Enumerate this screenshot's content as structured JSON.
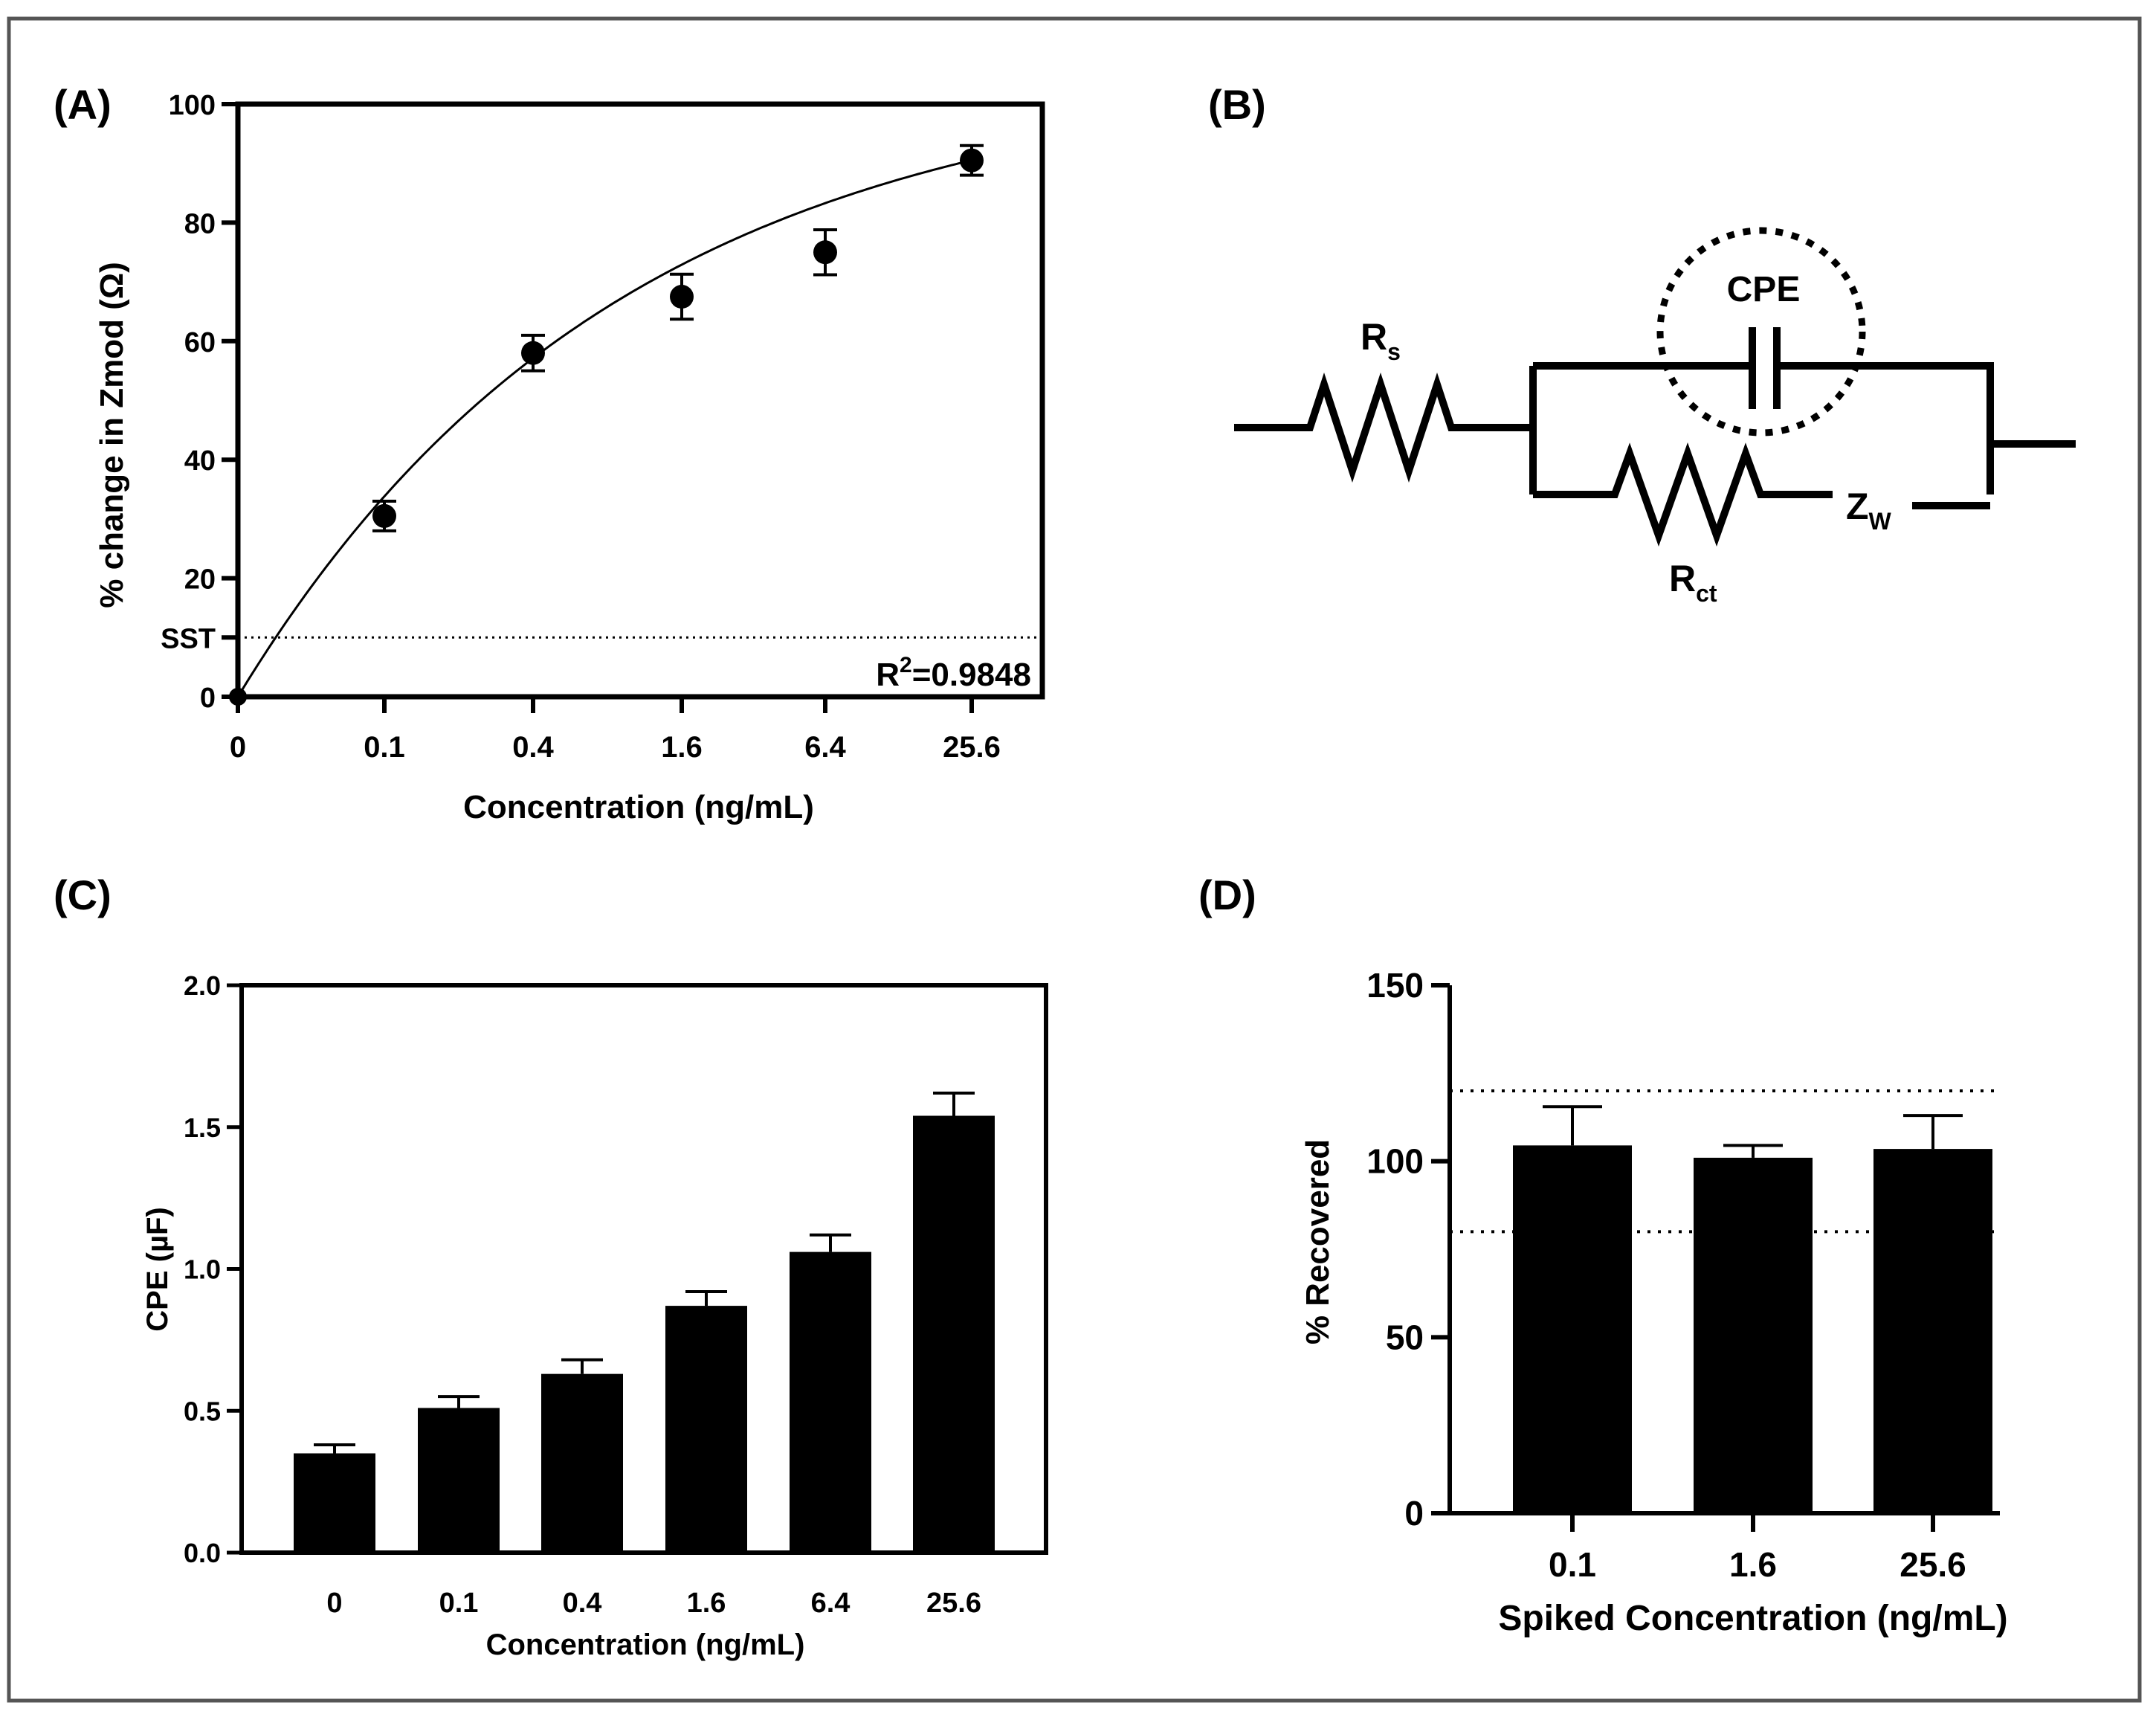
{
  "chart_data": [
    {
      "panel": "(A)",
      "type": "scatter",
      "title": "",
      "xlabel": "Concentration (ng/mL)",
      "ylabel": "% change in Zmod (Ω)",
      "categories": [
        "0",
        "0.1",
        "0.4",
        "1.6",
        "6.4",
        "25.6"
      ],
      "values": [
        0,
        30.5,
        58,
        67.5,
        75,
        90.5
      ],
      "errors": [
        0,
        2.5,
        3,
        3.8,
        3.8,
        2.5
      ],
      "yticks": [
        0,
        20,
        40,
        60,
        80,
        100
      ],
      "ylim": [
        0,
        100
      ],
      "fit": "one-phase association curve through points",
      "threshold": {
        "label": "SST",
        "value": 10,
        "style": "dotted"
      },
      "annotation": {
        "base": "R",
        "sup": "2",
        "text": "=0.9848"
      }
    },
    {
      "panel": "(B)",
      "type": "circuit",
      "labels": {
        "rs": {
          "base": "R",
          "sub": "s"
        },
        "cpe": "CPE",
        "rct": {
          "base": "R",
          "sub": "ct"
        },
        "zw": {
          "base": "Z",
          "sub": "W"
        }
      }
    },
    {
      "panel": "(C)",
      "type": "bar",
      "title": "",
      "xlabel": "Concentration (ng/mL)",
      "ylabel": "CPE (µF)",
      "categories": [
        "0",
        "0.1",
        "0.4",
        "1.6",
        "6.4",
        "25.6"
      ],
      "values": [
        0.35,
        0.51,
        0.63,
        0.87,
        1.06,
        1.54
      ],
      "errors": [
        0.03,
        0.04,
        0.05,
        0.05,
        0.06,
        0.08
      ],
      "yticks": [
        "0.0",
        "0.5",
        "1.0",
        "1.5",
        "2.0"
      ],
      "ylim": [
        0,
        2.0
      ]
    },
    {
      "panel": "(D)",
      "type": "bar",
      "title": "",
      "xlabel": "Spiked Concentration (ng/mL)",
      "ylabel": "% Recovered",
      "categories": [
        "0.1",
        "1.6",
        "25.6"
      ],
      "values": [
        104.5,
        101,
        103.5
      ],
      "errors": [
        11,
        3.5,
        9.5
      ],
      "yticks": [
        0,
        50,
        100,
        150
      ],
      "ylim": [
        0,
        150
      ],
      "reference_lines": [
        80,
        120
      ]
    }
  ]
}
